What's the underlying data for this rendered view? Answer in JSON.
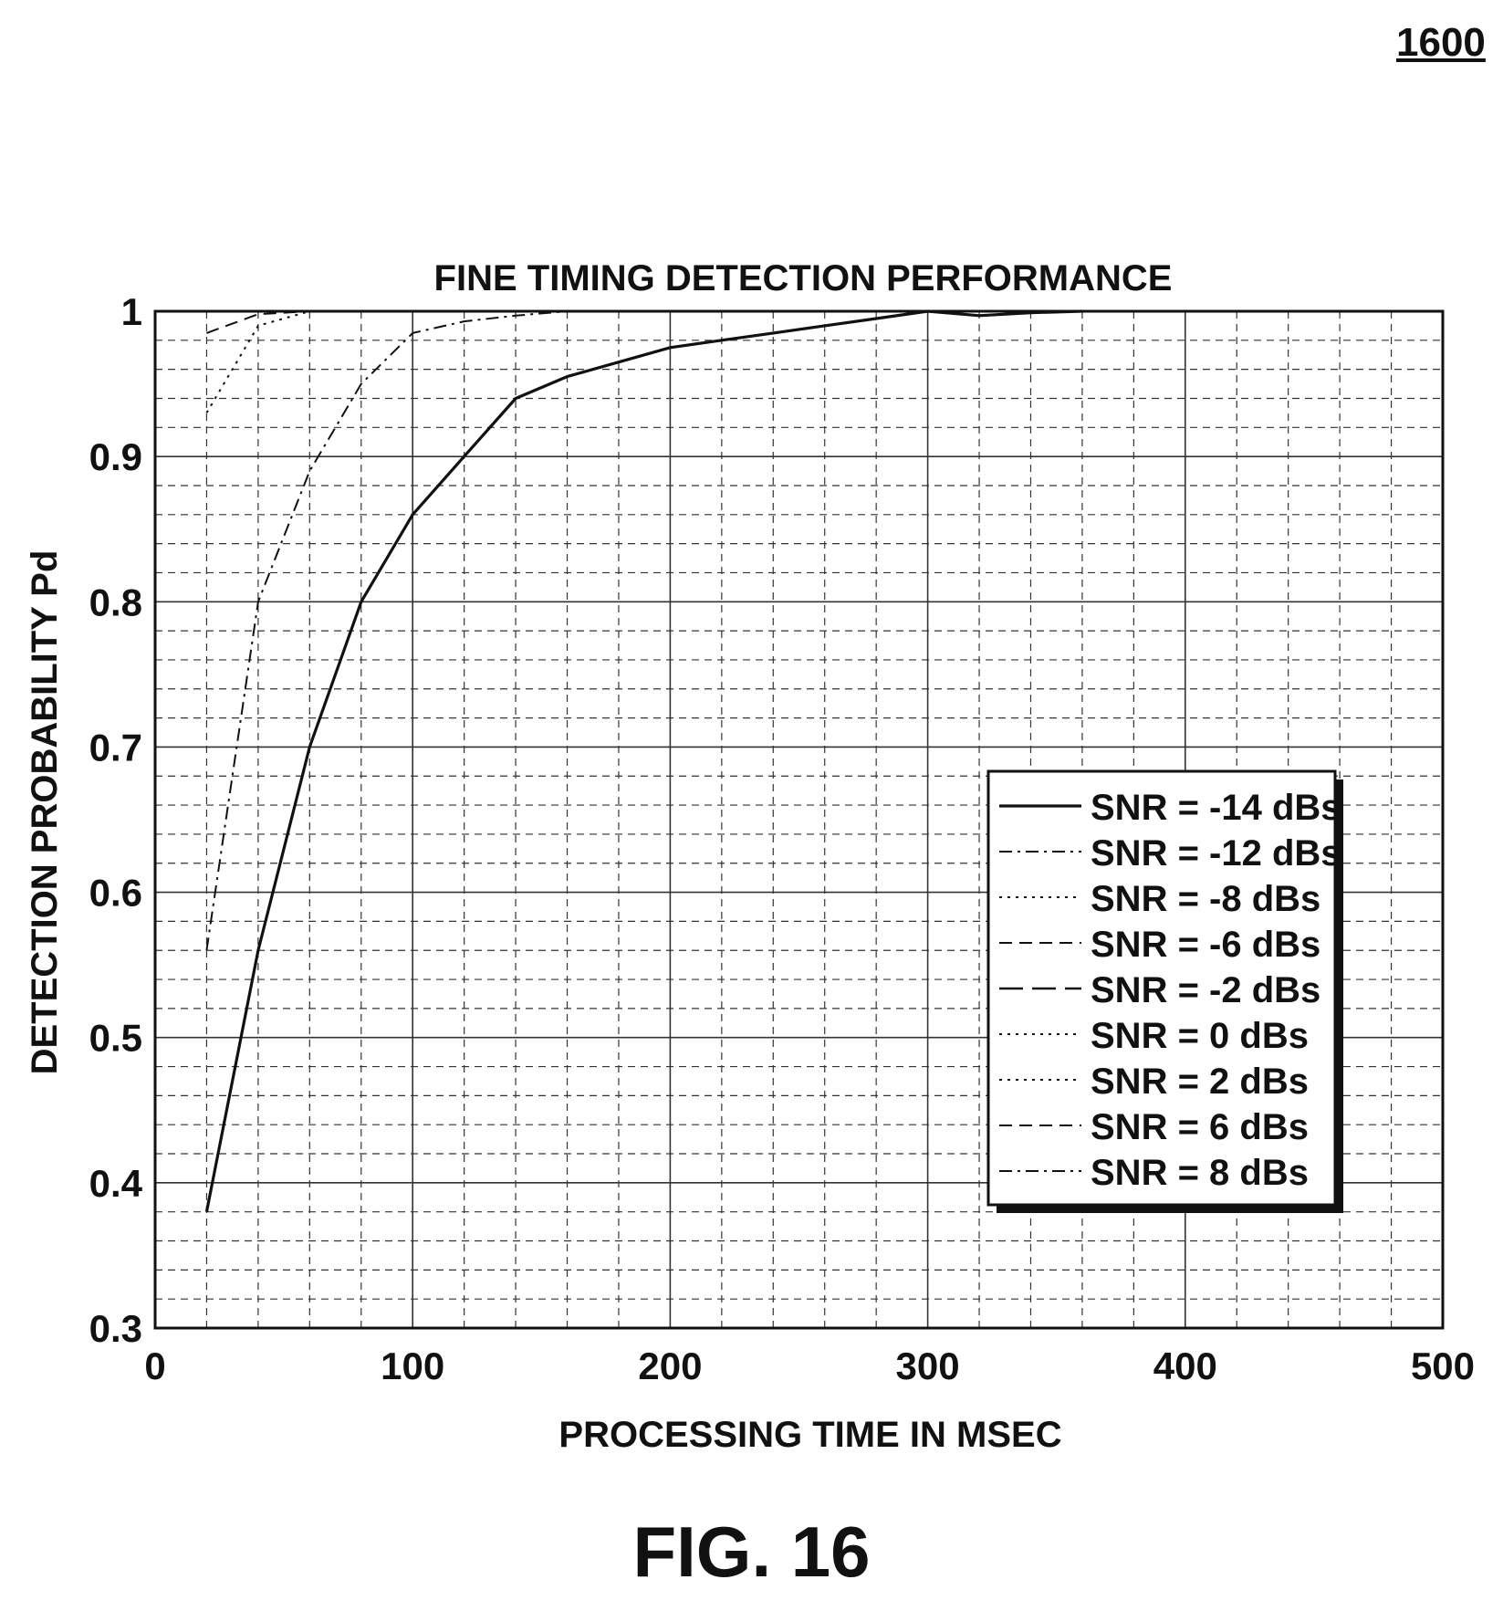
{
  "figure_number": "1600",
  "figure_caption": "FIG. 16",
  "chart_data": {
    "type": "line",
    "title": "FINE TIMING DETECTION PERFORMANCE",
    "xlabel": "PROCESSING TIME IN MSEC",
    "ylabel": "DETECTION PROBABILITY Pd",
    "xlim": [
      0,
      500
    ],
    "ylim": [
      0.3,
      1
    ],
    "xticks": [
      "0",
      "100",
      "200",
      "300",
      "400",
      "500"
    ],
    "yticks": [
      "0.3",
      "0.4",
      "0.5",
      "0.6",
      "0.7",
      "0.8",
      "0.9",
      "1"
    ],
    "grid": true,
    "legend_position": "lower-right",
    "series": [
      {
        "name": "SNR = -14 dBs",
        "dash": "solid",
        "x": [
          20,
          40,
          60,
          80,
          100,
          120,
          140,
          160,
          180,
          200,
          220,
          240,
          260,
          280,
          300,
          320,
          340,
          360
        ],
        "y": [
          0.38,
          0.56,
          0.7,
          0.8,
          0.86,
          0.9,
          0.94,
          0.955,
          0.965,
          0.975,
          0.98,
          0.985,
          0.99,
          0.995,
          1.0,
          0.997,
          0.999,
          1.0
        ]
      },
      {
        "name": "SNR = -12 dBs",
        "dash": "dashdot",
        "x": [
          20,
          40,
          60,
          80,
          100,
          120,
          140,
          160
        ],
        "y": [
          0.56,
          0.8,
          0.89,
          0.95,
          0.985,
          0.993,
          0.997,
          1.0
        ]
      },
      {
        "name": "SNR = -8 dBs",
        "dash": "dotted",
        "x": [
          20,
          40,
          60,
          80
        ],
        "y": [
          0.93,
          0.99,
          1.0,
          1.0
        ]
      },
      {
        "name": "SNR = -6 dBs",
        "dash": "dashed",
        "x": [
          20,
          40,
          60
        ],
        "y": [
          0.985,
          0.998,
          1.0
        ]
      },
      {
        "name": "SNR = -2 dBs",
        "dash": "longdash",
        "x": [
          20,
          40,
          60
        ],
        "y": [
          1.0,
          1.0,
          1.0
        ]
      },
      {
        "name": "SNR = 0 dBs",
        "dash": "dotted",
        "x": [
          20,
          40,
          60
        ],
        "y": [
          1.0,
          1.0,
          1.0
        ]
      },
      {
        "name": "SNR = 2 dBs",
        "dash": "dotted",
        "x": [
          20,
          40,
          60
        ],
        "y": [
          1.0,
          1.0,
          1.0
        ]
      },
      {
        "name": "SNR = 6 dBs",
        "dash": "dashed",
        "x": [
          20,
          40,
          60
        ],
        "y": [
          1.0,
          1.0,
          1.0
        ]
      },
      {
        "name": "SNR = 8 dBs",
        "dash": "dashdot",
        "x": [
          20,
          40,
          60
        ],
        "y": [
          1.0,
          1.0,
          1.0
        ]
      }
    ]
  }
}
